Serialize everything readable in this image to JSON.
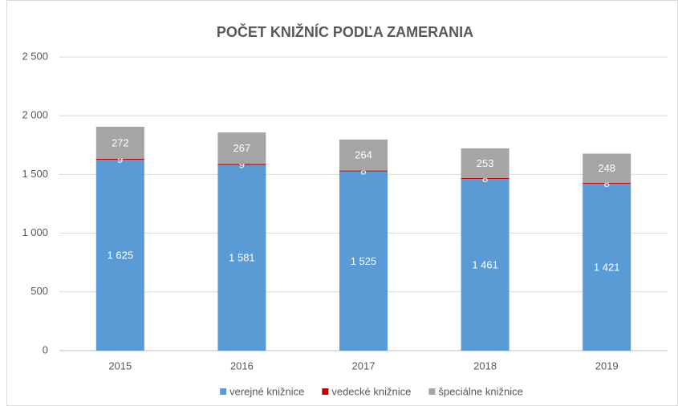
{
  "chart_data": {
    "type": "bar",
    "stacked": true,
    "title": "POČET KNIŽNÍC PODĽA ZAMERANIA",
    "categories": [
      "2015",
      "2016",
      "2017",
      "2018",
      "2019"
    ],
    "series": [
      {
        "name": "verejné knižnice",
        "color": "#5b9bd5",
        "values": [
          1625,
          1581,
          1525,
          1461,
          1421
        ],
        "value_labels": [
          "1 625",
          "1 581",
          "1 525",
          "1 461",
          "1 421"
        ]
      },
      {
        "name": "vedecké knižnice",
        "color": "#c00000",
        "values": [
          9,
          9,
          8,
          8,
          8
        ]
      },
      {
        "name": "špeciálne knižnice",
        "color": "#a5a5a5",
        "values": [
          272,
          267,
          264,
          253,
          248
        ]
      }
    ],
    "ylim": [
      0,
      2500
    ],
    "yticks": [
      0,
      500,
      {
        "value": 1000,
        "label": "1 000"
      },
      {
        "value": 1500,
        "label": "1 500"
      },
      {
        "value": 2000,
        "label": "2 000"
      },
      {
        "value": 2500,
        "label": "2 500"
      }
    ],
    "grid": true,
    "legend": "bottom"
  }
}
